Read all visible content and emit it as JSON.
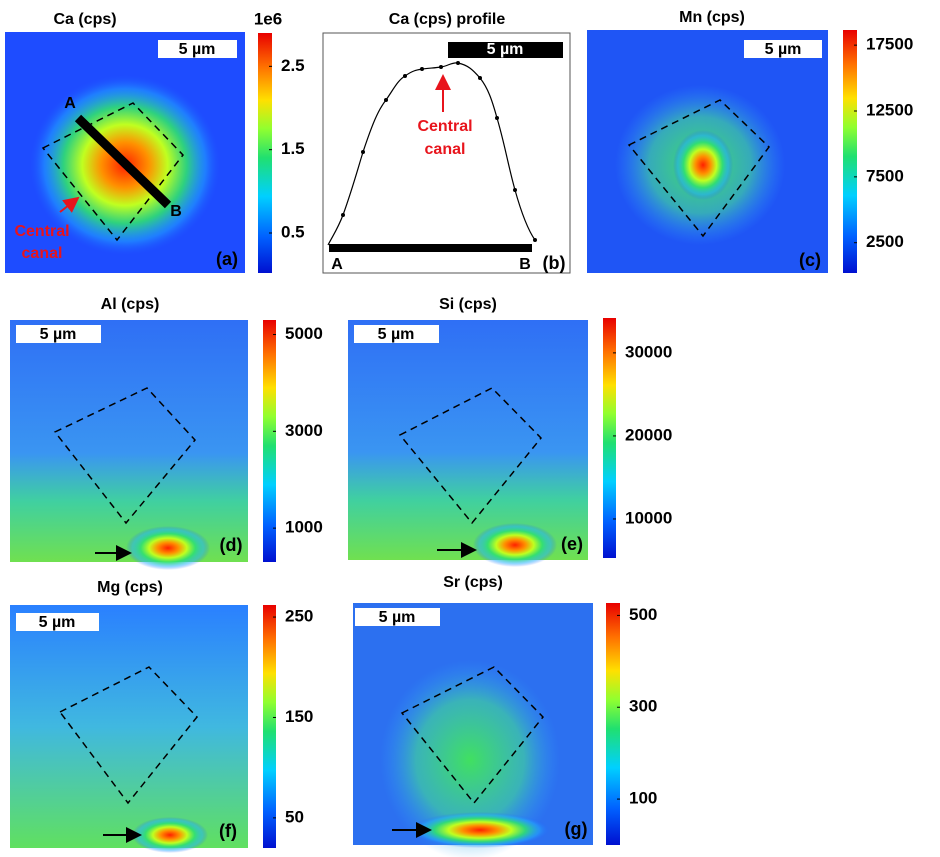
{
  "panels": [
    {
      "title": "Ca (cps)",
      "label": "(a)",
      "scale_bar": "5 µm",
      "annotations": [
        "A",
        "B"
      ],
      "canal_label": [
        "Central",
        "canal"
      ],
      "colorbar": {
        "exponent_label": "1e6",
        "lim": [
          0.02,
          2.9
        ],
        "ticks": [
          0.5,
          1.5,
          2.5
        ]
      }
    },
    {
      "title": "Ca (cps) profile",
      "label": "(b)",
      "scale_bar": "5 µm",
      "annotations": [
        "A",
        "B"
      ],
      "canal_label": [
        "Central",
        "canal"
      ]
    },
    {
      "title": "Mn (cps)",
      "label": "(c)",
      "scale_bar": "5 µm",
      "colorbar": {
        "lim": [
          200,
          18650
        ],
        "ticks": [
          2500,
          7500,
          12500,
          17500
        ]
      }
    },
    {
      "title": "Al (cps)",
      "label": "(d)",
      "scale_bar": "5 µm",
      "colorbar": {
        "lim": [
          300,
          5300
        ],
        "ticks": [
          1000,
          3000,
          5000
        ]
      }
    },
    {
      "title": "Si (cps)",
      "label": "(e)",
      "scale_bar": "5 µm",
      "colorbar": {
        "lim": [
          5300,
          34200
        ],
        "ticks": [
          10000,
          20000,
          30000
        ]
      }
    },
    {
      "title": "Mg (cps)",
      "label": "(f)",
      "scale_bar": "5 µm",
      "colorbar": {
        "lim": [
          20,
          262
        ],
        "ticks": [
          50,
          150,
          250
        ]
      }
    },
    {
      "title": "Sr (cps)",
      "label": "(g)",
      "scale_bar": "5 µm",
      "colorbar": {
        "lim": [
          0,
          527
        ],
        "ticks": [
          100,
          300,
          500
        ]
      }
    }
  ]
}
